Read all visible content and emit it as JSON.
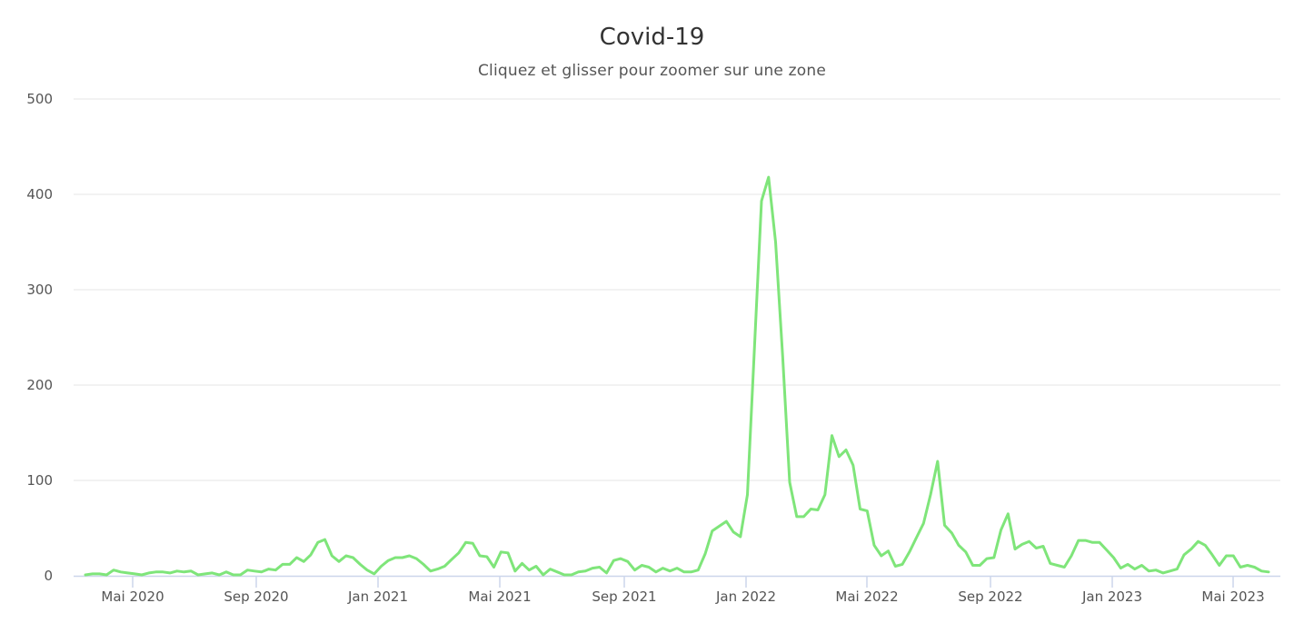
{
  "title": "Covid-19",
  "subtitle": "Cliquez et glisser pour zoomer sur une zone",
  "colors": {
    "series": "#7fe57a",
    "grid": "#e6e6e6",
    "axis": "#ccd6eb",
    "text": "#333333",
    "label": "#555555"
  },
  "chart_data": {
    "type": "line",
    "title": "Covid-19",
    "subtitle": "Cliquez et glisser pour zoomer sur une zone",
    "xlabel": "",
    "ylabel": "",
    "ylim": [
      0,
      500
    ],
    "yticks": [
      0,
      100,
      200,
      300,
      400,
      500
    ],
    "xticks": [
      "Mai 2020",
      "Sep 2020",
      "Jan 2021",
      "Mai 2021",
      "Sep 2021",
      "Jan 2022",
      "Mai 2022",
      "Sep 2022",
      "Jan 2023",
      "Mai 2023"
    ],
    "grid": true,
    "legend": false,
    "x_frequency": "weekly",
    "x_start": "Mar 2020",
    "x_end": "Jun 2023",
    "series": [
      {
        "name": "Covid-19",
        "values": [
          1,
          2,
          2,
          1,
          6,
          4,
          3,
          2,
          1,
          3,
          4,
          4,
          3,
          5,
          4,
          5,
          1,
          2,
          3,
          1,
          4,
          1,
          1,
          6,
          5,
          4,
          7,
          6,
          12,
          12,
          19,
          15,
          22,
          35,
          38,
          21,
          15,
          21,
          19,
          12,
          6,
          2,
          10,
          16,
          19,
          19,
          21,
          18,
          12,
          5,
          7,
          10,
          17,
          24,
          35,
          34,
          21,
          20,
          9,
          25,
          24,
          5,
          13,
          6,
          10,
          1,
          7,
          4,
          1,
          1,
          4,
          5,
          8,
          9,
          3,
          16,
          18,
          15,
          6,
          11,
          9,
          4,
          8,
          5,
          8,
          4,
          4,
          6,
          23,
          47,
          52,
          57,
          46,
          41,
          85,
          240,
          393,
          418,
          350,
          230,
          98,
          62,
          62,
          70,
          69,
          85,
          147,
          125,
          132,
          116,
          70,
          68,
          32,
          21,
          26,
          10,
          12,
          25,
          40,
          55,
          85,
          120,
          53,
          45,
          32,
          25,
          11,
          11,
          18,
          19,
          48,
          65,
          28,
          33,
          36,
          29,
          31,
          13,
          11,
          9,
          21,
          37,
          37,
          35,
          35,
          27,
          19,
          8,
          12,
          7,
          11,
          5,
          6,
          3,
          5,
          7,
          22,
          28,
          36,
          32,
          22,
          11,
          21,
          21,
          9,
          11,
          9,
          5,
          4
        ]
      }
    ]
  }
}
